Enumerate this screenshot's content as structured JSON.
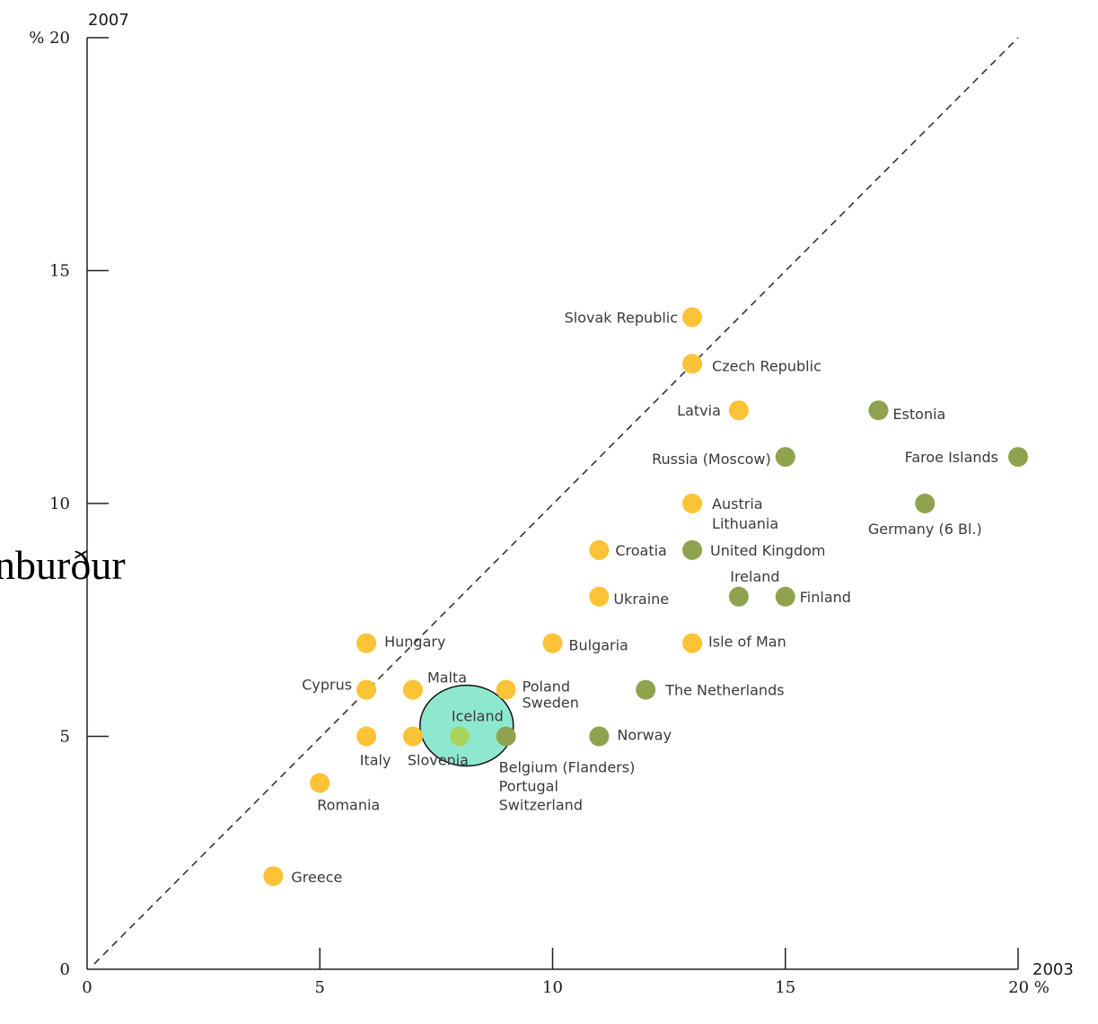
{
  "chart_data": {
    "type": "scatter",
    "title": "",
    "xlabel": "2003",
    "ylabel": "2007",
    "x_unit": "%",
    "y_unit": "%",
    "xlim": [
      0,
      20
    ],
    "ylim": [
      0,
      20
    ],
    "x_ticks": [
      "0",
      "5",
      "10",
      "15",
      "20"
    ],
    "y_ticks": [
      "0",
      "5",
      "10",
      "15",
      "20"
    ],
    "reference_line": "y = x (dashed)",
    "colors": {
      "yellow": "#fbc335",
      "green": "#8fa34e",
      "highlight": "#8ee8cf"
    },
    "points": [
      {
        "label": "Slovak Republic",
        "x": 13,
        "y": 14,
        "color": "yellow"
      },
      {
        "label": "Czech Republic",
        "x": 13,
        "y": 13,
        "color": "yellow"
      },
      {
        "label": "Latvia",
        "x": 14,
        "y": 12,
        "color": "yellow"
      },
      {
        "label": "Estonia",
        "x": 17,
        "y": 12,
        "color": "green"
      },
      {
        "label": "Russia (Moscow)",
        "x": 15,
        "y": 11,
        "color": "green"
      },
      {
        "label": "Faroe Islands",
        "x": 20,
        "y": 11,
        "color": "green"
      },
      {
        "label": "Austria",
        "x": 13,
        "y": 10,
        "color": "yellow"
      },
      {
        "label": "Lithuania",
        "x": 13,
        "y": 10,
        "color": "yellow"
      },
      {
        "label": "Germany (6 Bl.)",
        "x": 18,
        "y": 10,
        "color": "green"
      },
      {
        "label": "Croatia",
        "x": 11,
        "y": 9,
        "color": "yellow"
      },
      {
        "label": "United Kingdom",
        "x": 13,
        "y": 9,
        "color": "green"
      },
      {
        "label": "Ukraine",
        "x": 11,
        "y": 8,
        "color": "yellow"
      },
      {
        "label": "Ireland",
        "x": 14,
        "y": 8,
        "color": "green"
      },
      {
        "label": "Finland",
        "x": 15,
        "y": 8,
        "color": "green"
      },
      {
        "label": "Hungary",
        "x": 6,
        "y": 7,
        "color": "yellow"
      },
      {
        "label": "Bulgaria",
        "x": 10,
        "y": 7,
        "color": "yellow"
      },
      {
        "label": "Isle of Man",
        "x": 13,
        "y": 7,
        "color": "yellow"
      },
      {
        "label": "Cyprus",
        "x": 6,
        "y": 6,
        "color": "yellow"
      },
      {
        "label": "Malta",
        "x": 7,
        "y": 6,
        "color": "yellow"
      },
      {
        "label": "Poland",
        "x": 9,
        "y": 6,
        "color": "yellow"
      },
      {
        "label": "Sweden",
        "x": 9,
        "y": 6,
        "color": "yellow"
      },
      {
        "label": "The Netherlands",
        "x": 12,
        "y": 6,
        "color": "green"
      },
      {
        "label": "Italy",
        "x": 6,
        "y": 5,
        "color": "yellow"
      },
      {
        "label": "Slovenia",
        "x": 7,
        "y": 5,
        "color": "yellow"
      },
      {
        "label": "Iceland",
        "x": 8,
        "y": 5,
        "color": "green"
      },
      {
        "label": "Belgium (Flanders)",
        "x": 9,
        "y": 5,
        "color": "green"
      },
      {
        "label": "Portugal",
        "x": 9,
        "y": 5,
        "color": "green"
      },
      {
        "label": "Switzerland",
        "x": 9,
        "y": 5,
        "color": "green"
      },
      {
        "label": "Norway",
        "x": 11,
        "y": 5,
        "color": "green"
      },
      {
        "label": "Romania",
        "x": 5,
        "y": 4,
        "color": "yellow"
      },
      {
        "label": "Greece",
        "x": 4,
        "y": 2,
        "color": "yellow"
      }
    ],
    "highlighted": "Iceland"
  },
  "overlay_text": "nburður"
}
